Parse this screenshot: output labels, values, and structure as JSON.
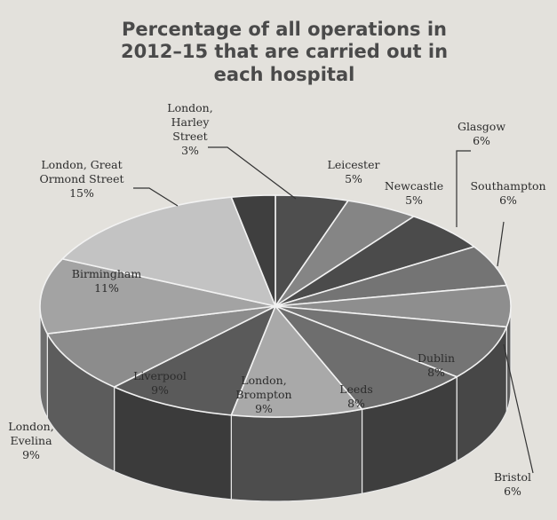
{
  "chart_data": {
    "type": "pie",
    "title": [
      "Percentage of all operations in",
      "2012–15 that are carried out in",
      "each hospital"
    ],
    "unit": "%",
    "slices": [
      {
        "name": [
          "Leicester"
        ],
        "value": 5,
        "color": "#4e4e4e",
        "side": "#3a3a3a",
        "label": "5%"
      },
      {
        "name": [
          "Newcastle"
        ],
        "value": 5,
        "color": "#858585",
        "side": "#5a5a5a",
        "label": "5%"
      },
      {
        "name": [
          "Glasgow"
        ],
        "value": 6,
        "color": "#4b4b4b",
        "side": "#383838",
        "label": "6%"
      },
      {
        "name": [
          "Southampton"
        ],
        "value": 6,
        "color": "#747474",
        "side": "#545454",
        "label": "6%"
      },
      {
        "name": [
          "Bristol"
        ],
        "value": 6,
        "color": "#8e8e8e",
        "side": "#5e5e5e",
        "label": "6%"
      },
      {
        "name": [
          "Dublin"
        ],
        "value": 8,
        "color": "#747474",
        "side": "#474747",
        "label": "8%"
      },
      {
        "name": [
          "Leeds"
        ],
        "value": 8,
        "color": "#6e6e6e",
        "side": "#3e3e3e",
        "label": "8%"
      },
      {
        "name": [
          "London,",
          "Brompton"
        ],
        "value": 9,
        "color": "#a9a9a9",
        "side": "#4d4d4d",
        "label": "9%"
      },
      {
        "name": [
          "Liverpool"
        ],
        "value": 9,
        "color": "#5a5a5a",
        "side": "#3b3b3b",
        "label": "9%"
      },
      {
        "name": [
          "London,",
          "Evelina"
        ],
        "value": 9,
        "color": "#8c8c8c",
        "side": "#5c5c5c",
        "label": "9%"
      },
      {
        "name": [
          "Birmingham"
        ],
        "value": 11,
        "color": "#a3a3a3",
        "side": "#6e6e6e",
        "label": "11%"
      },
      {
        "name": [
          "London, Great",
          "Ormond Street"
        ],
        "value": 15,
        "color": "#c3c3c3",
        "side": "#8a8a8a",
        "label": "15%"
      },
      {
        "name": [
          "London,",
          "Harley",
          "Street"
        ],
        "value": 3,
        "color": "#3f3f3f",
        "side": "#2e2e2e",
        "label": "3%"
      }
    ]
  }
}
